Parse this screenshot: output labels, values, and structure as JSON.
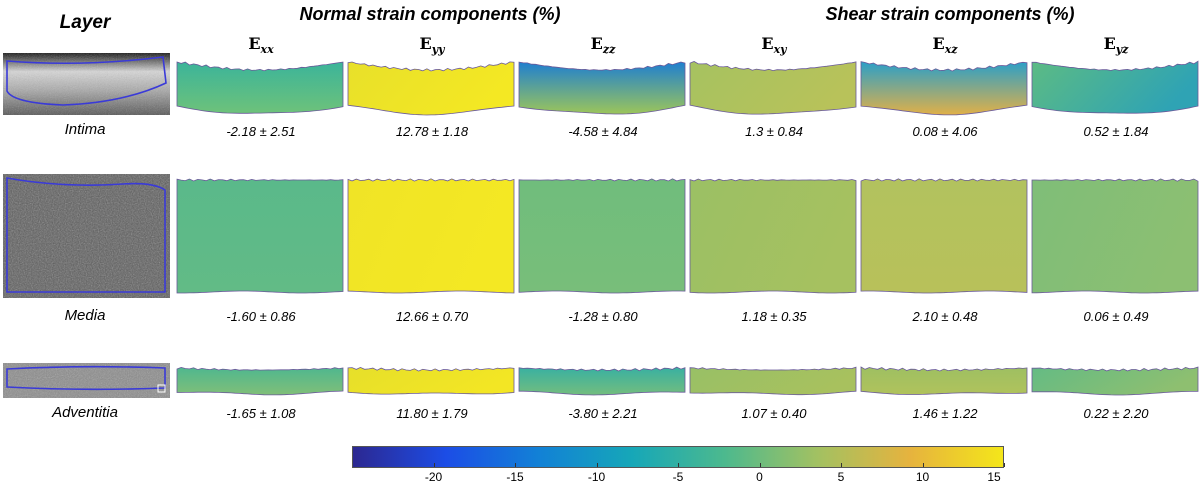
{
  "title_layer": "Layer",
  "title_normal": "Normal strain components (%)",
  "title_shear": "Shear strain components (%)",
  "components": [
    {
      "base": "E",
      "sub": "xx"
    },
    {
      "base": "E",
      "sub": "yy"
    },
    {
      "base": "E",
      "sub": "zz"
    },
    {
      "base": "E",
      "sub": "xy"
    },
    {
      "base": "E",
      "sub": "xz"
    },
    {
      "base": "E",
      "sub": "yz"
    }
  ],
  "layers": [
    {
      "name": "Intima",
      "values": [
        "-2.18 ± 2.51",
        "12.78 ± 1.18",
        "-4.58 ± 4.84",
        "1.3 ± 0.84",
        "0.08 ± 4.06",
        "0.52 ± 1.84"
      ],
      "colors": [
        [
          "#3bb49a",
          "#6ec27a"
        ],
        [
          "#e8e02a",
          "#f4e823"
        ],
        [
          "#1f7fd0",
          "#9cc55a"
        ],
        [
          "#a6c260",
          "#b8c25a"
        ],
        [
          "#2b9fc8",
          "#e0b048"
        ],
        [
          "#5cbb84",
          "#2fa3b4"
        ]
      ]
    },
    {
      "name": "Media",
      "values": [
        "-1.60 ± 0.86",
        "12.66 ± 0.70",
        "-1.28 ± 0.80",
        "1.18 ± 0.35",
        "2.10 ± 0.48",
        "0.06 ± 0.49"
      ],
      "colors": [
        [
          "#5ab98a",
          "#62bb86"
        ],
        [
          "#f0e426",
          "#f4e823"
        ],
        [
          "#70bd7c",
          "#78be7a"
        ],
        [
          "#9bc064",
          "#a6c160"
        ],
        [
          "#b2c25e",
          "#b8c15a"
        ],
        [
          "#7fbe78",
          "#8cbf72"
        ]
      ]
    },
    {
      "name": "Adventitia",
      "values": [
        "-1.65 ± 1.08",
        "11.80 ± 1.79",
        "-3.80 ± 2.21",
        "1.07 ± 0.40",
        "1.46 ± 1.22",
        "0.22 ± 2.20"
      ],
      "colors": [
        [
          "#4fb78f",
          "#80bf78"
        ],
        [
          "#e6df2a",
          "#f3e624"
        ],
        [
          "#38b0a2",
          "#73bd7e"
        ],
        [
          "#98c066",
          "#a8c15e"
        ],
        [
          "#9ec062",
          "#b0c25c"
        ],
        [
          "#64bb84",
          "#8ebf70"
        ]
      ]
    }
  ],
  "colorbar": {
    "ticks": [
      "-20",
      "-15",
      "-10",
      "-5",
      "0",
      "5",
      "10",
      "15"
    ],
    "tick_values": [
      -20,
      -15,
      -10,
      -5,
      0,
      5,
      10,
      15
    ],
    "range": [
      -25,
      15
    ],
    "colors": [
      "#2c2891",
      "#1c4de6",
      "#1281d6",
      "#16a7b8",
      "#4cb98e",
      "#a2c162",
      "#e6b33e",
      "#f4e61a"
    ]
  },
  "outline_color": "#3a3ad8"
}
